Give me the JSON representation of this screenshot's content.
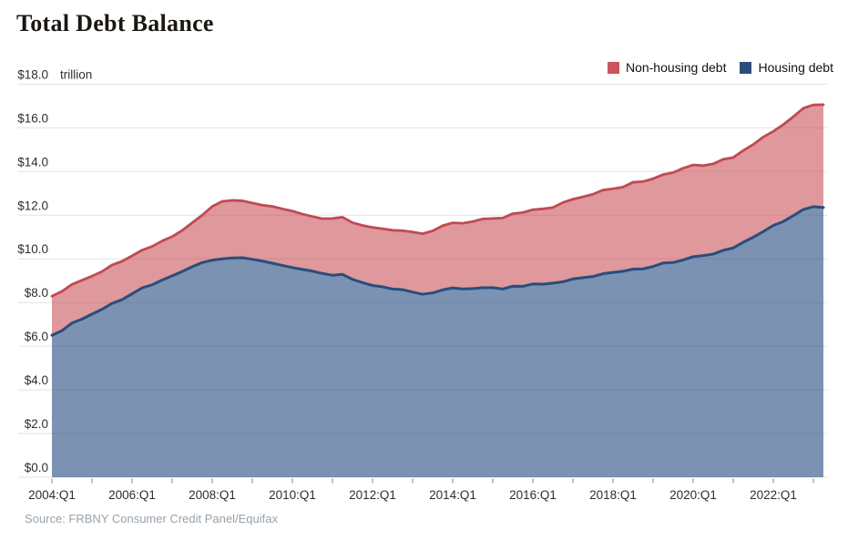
{
  "title": "Total Debt Balance",
  "legend": [
    {
      "label": "Non-housing debt",
      "color": "#c9565e"
    },
    {
      "label": "Housing debt",
      "color": "#2b4d7c"
    }
  ],
  "source": "Source: FRBNY Consumer Credit Panel/Equifax",
  "chart_data": {
    "type": "area",
    "stacked": true,
    "title": "Total Debt Balance",
    "unit_label": "trillion",
    "ylabel": "trillions of USD",
    "ylim": [
      0,
      18
    ],
    "grid": true,
    "legend_position": "top-right",
    "x_frequency": "quarterly",
    "x_start": "2004:Q1",
    "x_end": "2023:Q2",
    "y_tick_labels": [
      "$0.0",
      "$2.0",
      "$4.0",
      "$6.0",
      "$8.0",
      "$10.0",
      "$12.0",
      "$14.0",
      "$16.0",
      "$18.0"
    ],
    "x_tick_labels": [
      "2004:Q1",
      "2006:Q1",
      "2008:Q1",
      "2010:Q1",
      "2012:Q1",
      "2014:Q1",
      "2016:Q1",
      "2018:Q1",
      "2020:Q1",
      "2022:Q1"
    ],
    "series": [
      {
        "name": "Housing debt",
        "line_color": "#274e7d",
        "fill_color": "rgba(42,79,131,0.62)",
        "values": [
          6.5,
          6.71,
          7.06,
          7.24,
          7.47,
          7.69,
          7.96,
          8.13,
          8.4,
          8.67,
          8.81,
          9.03,
          9.22,
          9.42,
          9.64,
          9.83,
          9.94,
          10.0,
          10.04,
          10.05,
          9.98,
          9.9,
          9.8,
          9.7,
          9.6,
          9.52,
          9.44,
          9.33,
          9.25,
          9.29,
          9.06,
          8.91,
          8.78,
          8.72,
          8.62,
          8.59,
          8.48,
          8.38,
          8.44,
          8.58,
          8.67,
          8.62,
          8.64,
          8.68,
          8.68,
          8.62,
          8.75,
          8.74,
          8.85,
          8.84,
          8.89,
          8.95,
          9.08,
          9.14,
          9.19,
          9.32,
          9.38,
          9.43,
          9.53,
          9.54,
          9.65,
          9.81,
          9.83,
          9.95,
          10.1,
          10.15,
          10.22,
          10.39,
          10.5,
          10.76,
          10.99,
          11.25,
          11.53,
          11.71,
          11.98,
          12.26,
          12.39,
          12.35
        ]
      },
      {
        "name": "Non-housing debt",
        "line_color": "#c04a52",
        "fill_color": "rgba(195,60,66,0.53)",
        "values": [
          1.79,
          1.8,
          1.77,
          1.78,
          1.74,
          1.73,
          1.76,
          1.76,
          1.74,
          1.73,
          1.76,
          1.79,
          1.8,
          1.88,
          2.01,
          2.17,
          2.46,
          2.63,
          2.64,
          2.61,
          2.58,
          2.56,
          2.6,
          2.59,
          2.59,
          2.53,
          2.5,
          2.51,
          2.6,
          2.62,
          2.6,
          2.62,
          2.66,
          2.66,
          2.69,
          2.7,
          2.75,
          2.77,
          2.84,
          2.94,
          2.98,
          3.01,
          3.07,
          3.15,
          3.17,
          3.25,
          3.32,
          3.38,
          3.4,
          3.45,
          3.46,
          3.63,
          3.65,
          3.7,
          3.77,
          3.83,
          3.83,
          3.86,
          3.98,
          4.0,
          4.02,
          4.05,
          4.12,
          4.2,
          4.2,
          4.12,
          4.13,
          4.17,
          4.14,
          4.2,
          4.25,
          4.33,
          4.31,
          4.44,
          4.53,
          4.64,
          4.66,
          4.71
        ]
      }
    ]
  }
}
